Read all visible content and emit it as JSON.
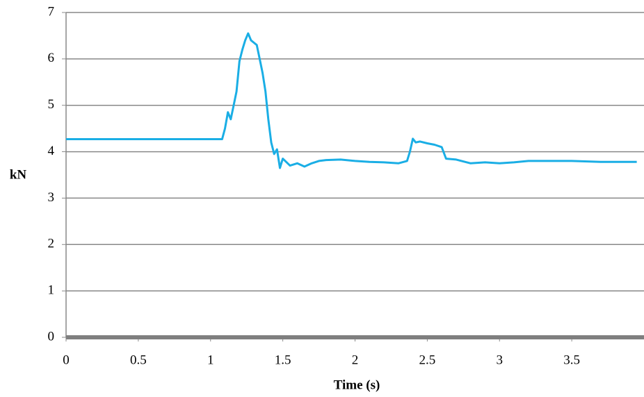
{
  "chart_data": {
    "type": "line",
    "x_label": "Time (s)",
    "y_label": "kN",
    "x": [
      0,
      0.5,
      1.0,
      1.08,
      1.1,
      1.12,
      1.14,
      1.16,
      1.18,
      1.2,
      1.22,
      1.24,
      1.26,
      1.28,
      1.3,
      1.32,
      1.34,
      1.36,
      1.38,
      1.4,
      1.42,
      1.44,
      1.46,
      1.48,
      1.5,
      1.55,
      1.6,
      1.65,
      1.7,
      1.75,
      1.8,
      1.9,
      2.0,
      2.1,
      2.2,
      2.3,
      2.36,
      2.38,
      2.4,
      2.42,
      2.45,
      2.5,
      2.55,
      2.6,
      2.63,
      2.7,
      2.8,
      2.9,
      3.0,
      3.1,
      3.2,
      3.3,
      3.5,
      3.7,
      3.9,
      3.95
    ],
    "values": [
      4.27,
      4.27,
      4.27,
      4.27,
      4.5,
      4.85,
      4.7,
      5.0,
      5.3,
      5.95,
      6.2,
      6.4,
      6.55,
      6.4,
      6.35,
      6.3,
      6.0,
      5.7,
      5.3,
      4.7,
      4.2,
      3.95,
      4.05,
      3.65,
      3.85,
      3.7,
      3.75,
      3.68,
      3.75,
      3.8,
      3.82,
      3.83,
      3.8,
      3.78,
      3.77,
      3.75,
      3.8,
      4.0,
      4.28,
      4.2,
      4.22,
      4.18,
      4.15,
      4.1,
      3.85,
      3.83,
      3.75,
      3.77,
      3.75,
      3.77,
      3.8,
      3.8,
      3.8,
      3.78,
      3.78,
      3.78
    ],
    "color": "#1aaee5",
    "xlim": [
      0,
      4
    ],
    "xticks": [
      0,
      0.5,
      1,
      1.5,
      2,
      2.5,
      3,
      3.5
    ],
    "ylim": [
      0,
      7
    ],
    "yticks": [
      0,
      1,
      2,
      3,
      4,
      5,
      6,
      7
    ],
    "grid": true
  }
}
